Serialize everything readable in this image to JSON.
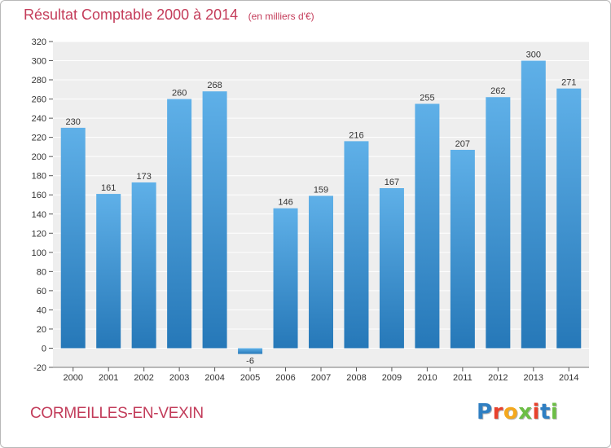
{
  "header": {
    "title": "Résultat Comptable 2000 à 2014",
    "subtitle": "(en milliers d'€)"
  },
  "footer": {
    "commune": "CORMEILLES-EN-VEXIN",
    "brand": "Proxiti"
  },
  "colors": {
    "title": "#c43c5a",
    "bar_light": "#5fb0e8",
    "bar_dark": "#2678b8",
    "plot_background": "#eeeeee",
    "grid": "#ffffff",
    "brand_letters": [
      "#2f7fc2",
      "#e8412c",
      "#f4a81d",
      "#6cbe45",
      "#e8412c",
      "#2f7fc2",
      "#6cbe45"
    ]
  },
  "chart_data": {
    "type": "bar",
    "title": "Résultat Comptable 2000 à 2014",
    "subtitle": "(en milliers d'€)",
    "xlabel": "",
    "ylabel": "",
    "categories": [
      "2000",
      "2001",
      "2002",
      "2003",
      "2004",
      "2005",
      "2006",
      "2007",
      "2008",
      "2009",
      "2010",
      "2011",
      "2012",
      "2013",
      "2014"
    ],
    "values": [
      230,
      161,
      173,
      260,
      268,
      -6,
      146,
      159,
      216,
      167,
      255,
      207,
      262,
      300,
      271
    ],
    "data_labels": [
      "230",
      "161",
      "173",
      "260",
      "268",
      "-6",
      "146",
      "159",
      "216",
      "167",
      "255",
      "207",
      "262",
      "300",
      "271"
    ],
    "ylim": [
      -20,
      320
    ],
    "yticks": [
      -20,
      0,
      20,
      40,
      60,
      80,
      100,
      120,
      140,
      160,
      180,
      200,
      220,
      240,
      260,
      280,
      300,
      320
    ],
    "grid": true,
    "legend": "none"
  }
}
